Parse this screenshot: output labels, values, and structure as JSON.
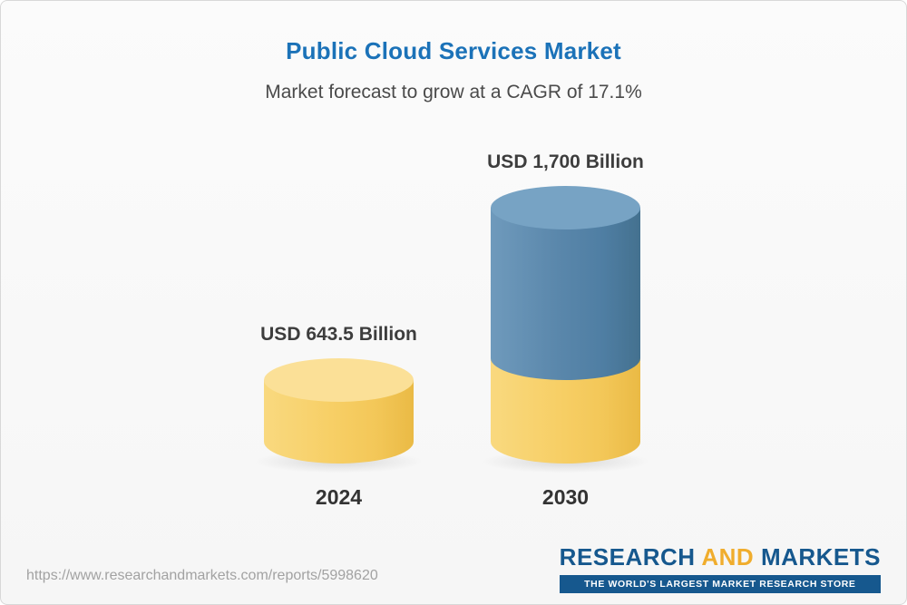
{
  "header": {
    "title": "Public Cloud Services Market",
    "subtitle": "Market forecast to grow at a CAGR of 17.1%"
  },
  "chart_data": {
    "type": "bar",
    "title": "Public Cloud Services Market",
    "subtitle": "Market forecast to grow at a CAGR of 17.1%",
    "categories": [
      "2024",
      "2030"
    ],
    "values": [
      643.5,
      1700
    ],
    "value_labels": [
      "USD 643.5 Billion",
      "USD 1,700 Billion"
    ],
    "unit": "USD Billion",
    "cagr_percent": 17.1,
    "bar_style": "3d-cylinder",
    "colors": {
      "base_segment": "#f7cf66",
      "growth_segment": "#5a87ab",
      "title": "#1b72b8"
    },
    "legend": "off",
    "grid": "off"
  },
  "footer": {
    "url": "https://www.researchandmarkets.com/reports/5998620",
    "logo": {
      "part1": "RESEARCH",
      "part2": "AND",
      "part3": "MARKETS",
      "tagline": "THE WORLD'S LARGEST MARKET RESEARCH STORE"
    }
  }
}
